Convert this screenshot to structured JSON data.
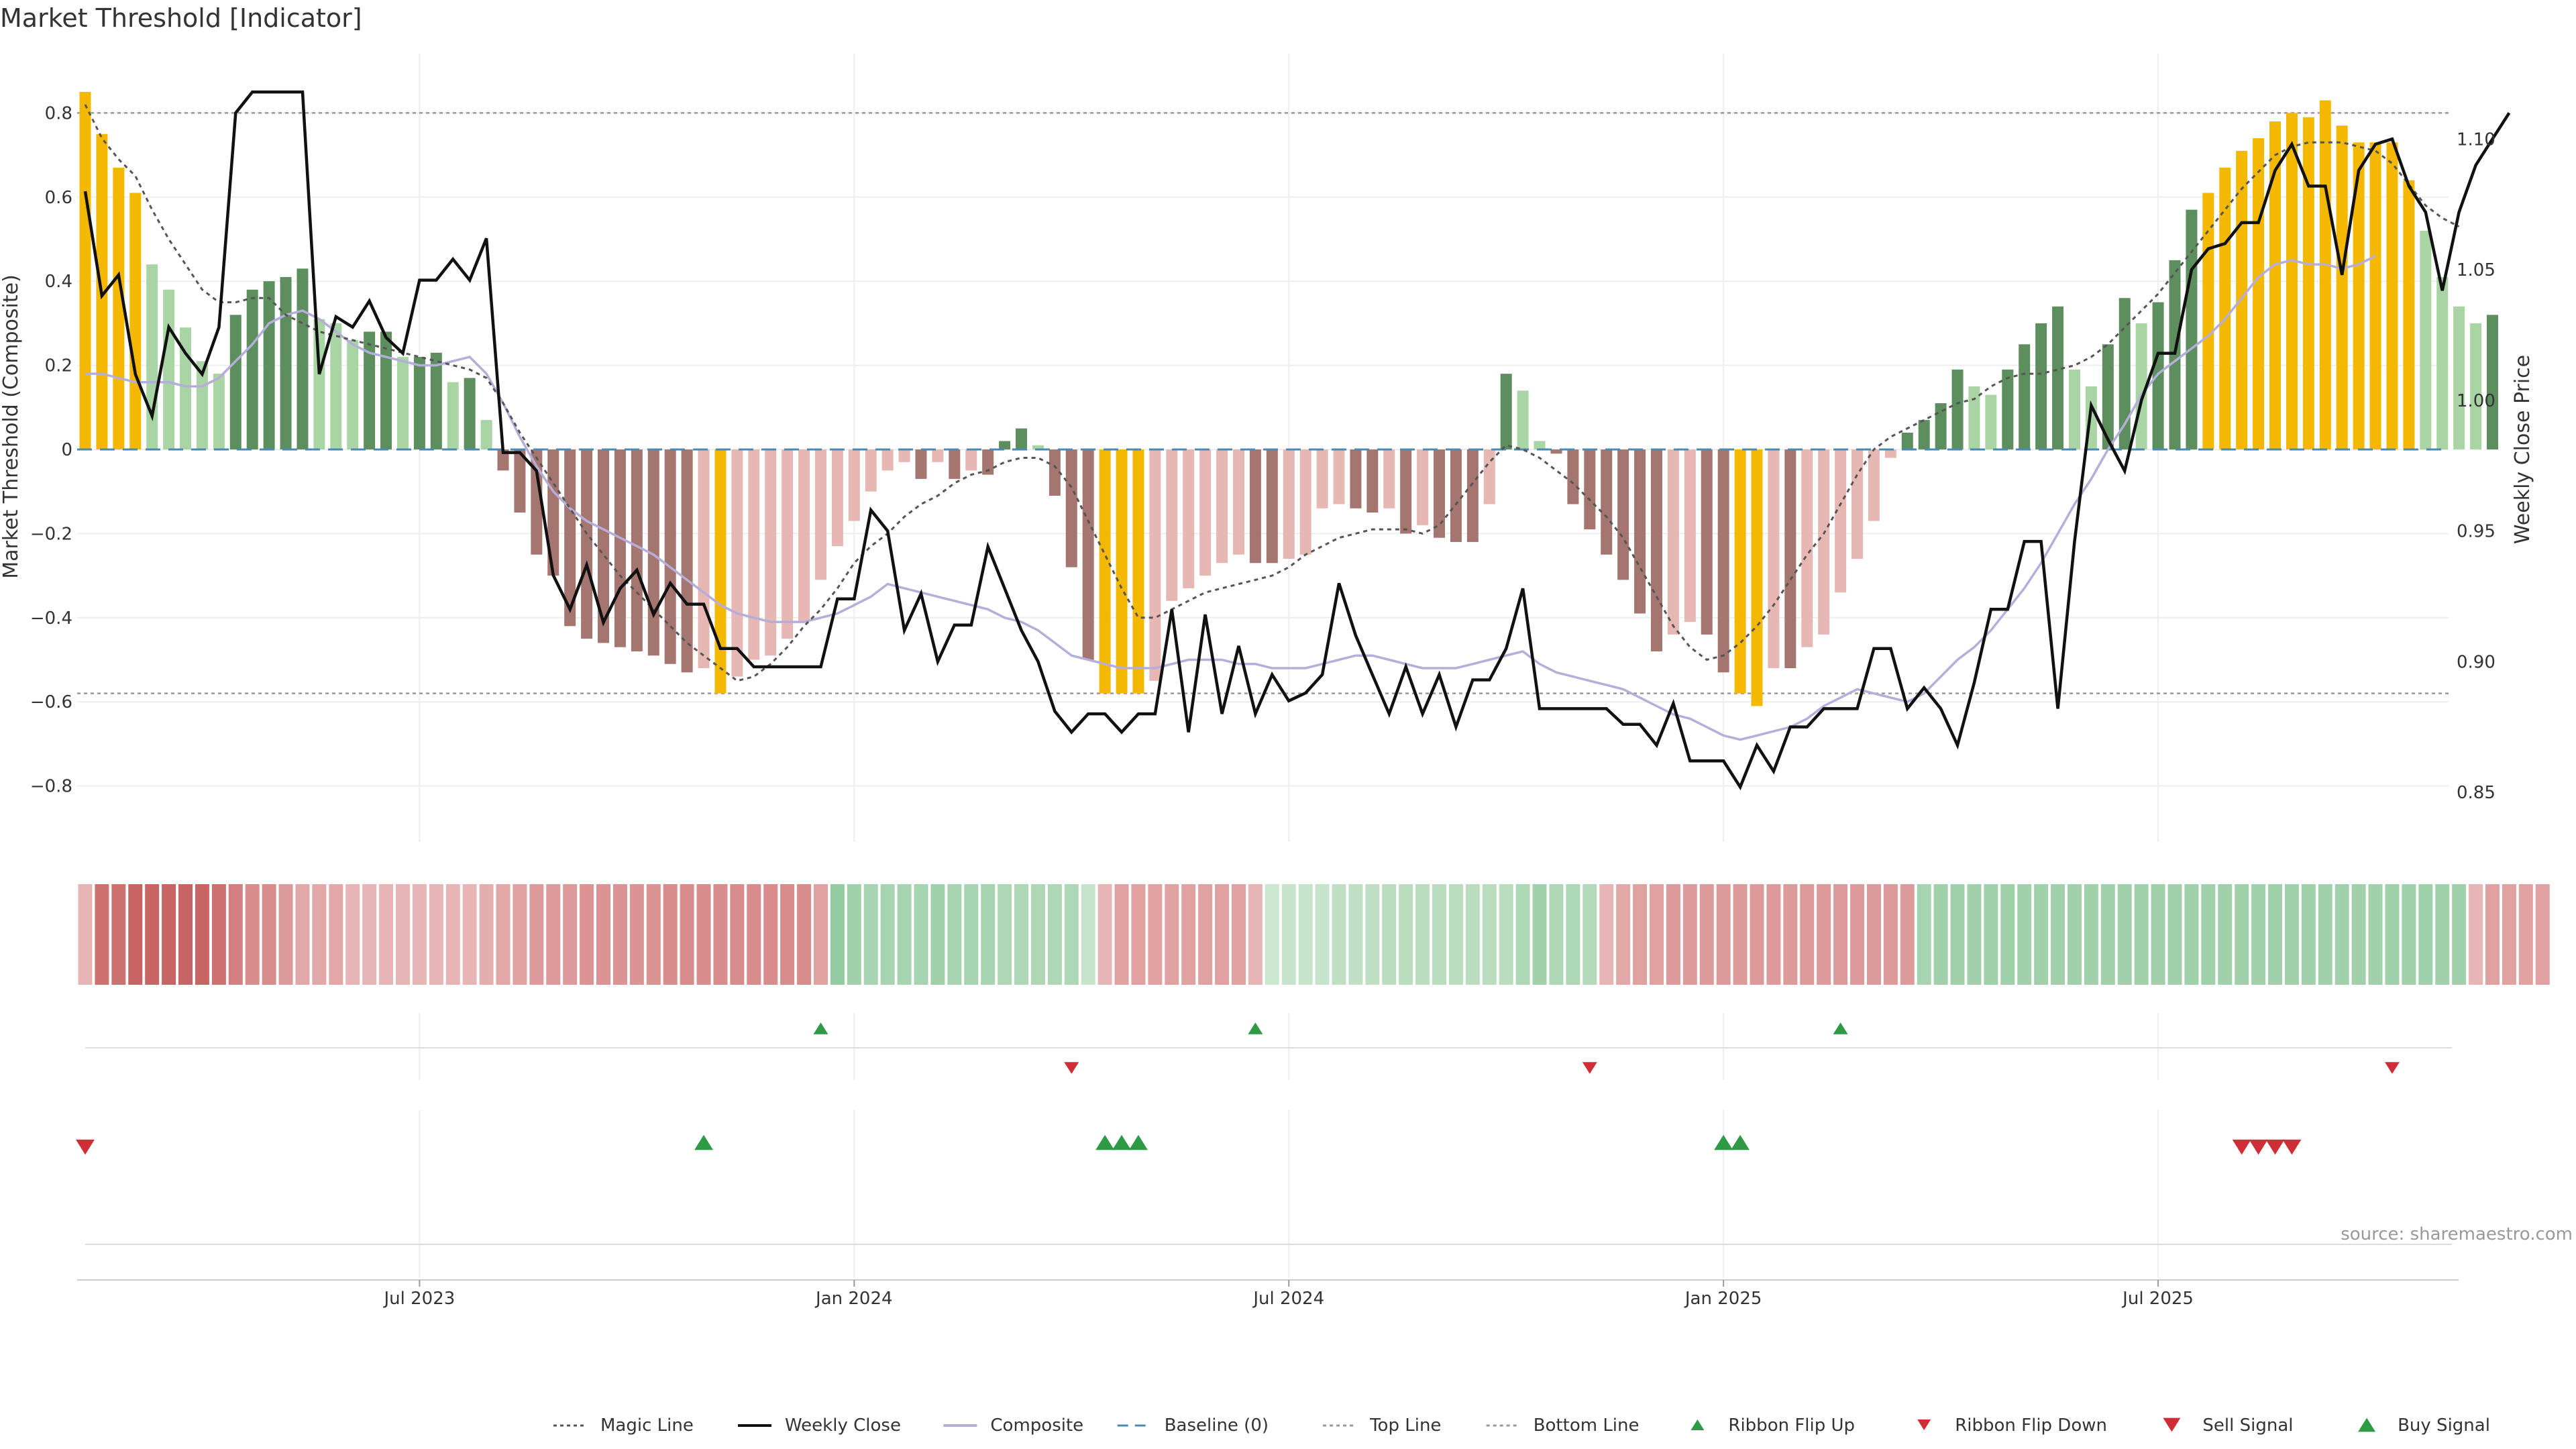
{
  "chart_data": {
    "type": "bar",
    "title": "Market Threshold [Indicator]",
    "ylabel_left": "Market Threshold (Composite)",
    "ylabel_right": "Weekly Close Price",
    "source": "source: sharemaestro.com",
    "ylim_left": [
      -0.95,
      0.87
    ],
    "ylim_right": [
      0.83,
      1.135
    ],
    "left_ticks": [
      "0.8",
      "0.6",
      "0.4",
      "0.2",
      "0",
      "−0.2",
      "−0.4",
      "−0.6",
      "−0.8"
    ],
    "left_tick_values": [
      0.8,
      0.6,
      0.4,
      0.2,
      0,
      -0.2,
      -0.4,
      -0.6,
      -0.8
    ],
    "right_ticks": [
      "1.10",
      "1.05",
      "1.00",
      "0.95",
      "0.90",
      "0.85"
    ],
    "right_tick_values": [
      1.1,
      1.05,
      1.0,
      0.95,
      0.9,
      0.85
    ],
    "x_ticks": [
      {
        "label": "Jul 2023",
        "week": 20
      },
      {
        "label": "Jan 2024",
        "week": 46
      },
      {
        "label": "Jul 2024",
        "week": 72
      },
      {
        "label": "Jan 2025",
        "week": 98
      },
      {
        "label": "Jul 2025",
        "week": 124
      }
    ],
    "top_line": 0.8,
    "bottom_line": -0.58,
    "baseline": 0,
    "composite_bars": [
      0.85,
      0.75,
      0.67,
      0.61,
      0.44,
      0.38,
      0.29,
      0.21,
      0.18,
      0.32,
      0.38,
      0.4,
      0.41,
      0.43,
      0.31,
      0.3,
      0.26,
      0.28,
      0.28,
      0.22,
      0.22,
      0.23,
      0.16,
      0.17,
      0.07,
      -0.05,
      -0.15,
      -0.25,
      -0.3,
      -0.42,
      -0.45,
      -0.46,
      -0.47,
      -0.48,
      -0.49,
      -0.51,
      -0.53,
      -0.52,
      -0.58,
      -0.54,
      -0.5,
      -0.49,
      -0.45,
      -0.41,
      -0.31,
      -0.23,
      -0.17,
      -0.1,
      -0.05,
      -0.03,
      -0.07,
      -0.03,
      -0.07,
      -0.05,
      -0.06,
      0.02,
      0.05,
      0.01,
      -0.11,
      -0.28,
      -0.5,
      -0.58,
      -0.58,
      -0.58,
      -0.55,
      -0.36,
      -0.33,
      -0.3,
      -0.27,
      -0.25,
      -0.27,
      -0.27,
      -0.26,
      -0.25,
      -0.14,
      -0.13,
      -0.14,
      -0.15,
      -0.14,
      -0.2,
      -0.18,
      -0.21,
      -0.22,
      -0.22,
      -0.13,
      0.18,
      0.14,
      0.02,
      -0.01,
      -0.13,
      -0.19,
      -0.25,
      -0.31,
      -0.39,
      -0.48,
      -0.44,
      -0.41,
      -0.44,
      -0.53,
      -0.58,
      -0.61,
      -0.52,
      -0.52,
      -0.47,
      -0.44,
      -0.34,
      -0.26,
      -0.17,
      -0.02,
      0.04,
      0.07,
      0.11,
      0.19,
      0.15,
      0.13,
      0.19,
      0.25,
      0.3,
      0.34,
      0.19,
      0.15,
      0.25,
      0.36,
      0.3,
      0.35,
      0.45,
      0.57,
      0.61,
      0.67,
      0.71,
      0.74,
      0.78,
      0.8,
      0.79,
      0.83,
      0.77,
      0.73,
      0.73,
      0.73,
      0.64,
      0.52,
      0.41,
      0.34,
      0.3,
      0.32
    ],
    "bar_colors": {
      "strong_pos": "#5d8f5e",
      "weak_pos": "#a9d5a5",
      "strong_neg": "#a57570",
      "weak_neg": "#e7b8b3",
      "extreme": "#f5b800"
    },
    "magic_line": [
      0.82,
      0.74,
      0.69,
      0.65,
      0.57,
      0.5,
      0.44,
      0.38,
      0.35,
      0.35,
      0.36,
      0.36,
      0.32,
      0.3,
      0.28,
      0.27,
      0.26,
      0.25,
      0.24,
      0.23,
      0.22,
      0.21,
      0.2,
      0.19,
      0.17,
      0.11,
      0.04,
      -0.02,
      -0.08,
      -0.14,
      -0.2,
      -0.25,
      -0.3,
      -0.34,
      -0.38,
      -0.42,
      -0.46,
      -0.49,
      -0.52,
      -0.55,
      -0.54,
      -0.51,
      -0.47,
      -0.42,
      -0.38,
      -0.33,
      -0.27,
      -0.23,
      -0.2,
      -0.16,
      -0.13,
      -0.11,
      -0.08,
      -0.06,
      -0.05,
      -0.03,
      -0.02,
      -0.02,
      -0.04,
      -0.09,
      -0.17,
      -0.25,
      -0.33,
      -0.4,
      -0.4,
      -0.38,
      -0.36,
      -0.34,
      -0.33,
      -0.32,
      -0.31,
      -0.3,
      -0.28,
      -0.25,
      -0.23,
      -0.21,
      -0.2,
      -0.19,
      -0.19,
      -0.19,
      -0.2,
      -0.18,
      -0.13,
      -0.08,
      -0.03,
      0.01,
      0.0,
      -0.02,
      -0.05,
      -0.08,
      -0.12,
      -0.16,
      -0.21,
      -0.28,
      -0.35,
      -0.42,
      -0.47,
      -0.5,
      -0.49,
      -0.46,
      -0.42,
      -0.37,
      -0.31,
      -0.25,
      -0.2,
      -0.13,
      -0.06,
      0.0,
      0.03,
      0.05,
      0.07,
      0.09,
      0.11,
      0.12,
      0.15,
      0.17,
      0.18,
      0.18,
      0.19,
      0.2,
      0.22,
      0.25,
      0.29,
      0.33,
      0.37,
      0.42,
      0.47,
      0.52,
      0.57,
      0.62,
      0.66,
      0.7,
      0.72,
      0.73,
      0.73,
      0.73,
      0.72,
      0.71,
      0.68,
      0.63,
      0.58,
      0.55,
      0.53
    ],
    "composite_line": [
      0.18,
      0.18,
      0.17,
      0.16,
      0.16,
      0.16,
      0.15,
      0.15,
      0.17,
      0.21,
      0.25,
      0.3,
      0.32,
      0.33,
      0.31,
      0.28,
      0.25,
      0.23,
      0.22,
      0.21,
      0.2,
      0.2,
      0.21,
      0.22,
      0.18,
      0.11,
      0.03,
      -0.04,
      -0.1,
      -0.14,
      -0.17,
      -0.19,
      -0.21,
      -0.23,
      -0.25,
      -0.28,
      -0.31,
      -0.34,
      -0.37,
      -0.39,
      -0.4,
      -0.41,
      -0.41,
      -0.41,
      -0.4,
      -0.39,
      -0.37,
      -0.35,
      -0.32,
      -0.33,
      -0.34,
      -0.35,
      -0.36,
      -0.37,
      -0.38,
      -0.4,
      -0.41,
      -0.43,
      -0.46,
      -0.49,
      -0.5,
      -0.51,
      -0.52,
      -0.52,
      -0.52,
      -0.51,
      -0.5,
      -0.5,
      -0.5,
      -0.51,
      -0.51,
      -0.52,
      -0.52,
      -0.52,
      -0.51,
      -0.5,
      -0.49,
      -0.49,
      -0.5,
      -0.51,
      -0.52,
      -0.52,
      -0.52,
      -0.51,
      -0.5,
      -0.49,
      -0.48,
      -0.51,
      -0.53,
      -0.54,
      -0.55,
      -0.56,
      -0.57,
      -0.59,
      -0.61,
      -0.63,
      -0.64,
      -0.66,
      -0.68,
      -0.69,
      -0.68,
      -0.67,
      -0.66,
      -0.64,
      -0.61,
      -0.59,
      -0.57,
      -0.58,
      -0.59,
      -0.6,
      -0.58,
      -0.54,
      -0.5,
      -0.47,
      -0.43,
      -0.38,
      -0.33,
      -0.27,
      -0.2,
      -0.13,
      -0.07,
      0.0,
      0.06,
      0.13,
      0.18,
      0.21,
      0.24,
      0.27,
      0.31,
      0.36,
      0.41,
      0.44,
      0.45,
      0.44,
      0.44,
      0.43,
      0.44,
      0.46
    ],
    "weekly_close": [
      1.08,
      1.04,
      1.048,
      1.01,
      0.994,
      1.028,
      1.018,
      1.01,
      1.028,
      1.11,
      1.118,
      1.118,
      1.118,
      1.118,
      1.01,
      1.032,
      1.028,
      1.038,
      1.024,
      1.018,
      1.046,
      1.046,
      1.054,
      1.046,
      1.062,
      0.98,
      0.98,
      0.973,
      0.933,
      0.92,
      0.937,
      0.915,
      0.928,
      0.935,
      0.918,
      0.93,
      0.922,
      0.922,
      0.905,
      0.905,
      0.898,
      0.898,
      0.898,
      0.898,
      0.898,
      0.924,
      0.924,
      0.958,
      0.95,
      0.912,
      0.926,
      0.9,
      0.914,
      0.914,
      0.944,
      0.928,
      0.912,
      0.9,
      0.881,
      0.873,
      0.88,
      0.88,
      0.873,
      0.88,
      0.88,
      0.92,
      0.873,
      0.918,
      0.88,
      0.906,
      0.88,
      0.895,
      0.885,
      0.888,
      0.895,
      0.93,
      0.91,
      0.895,
      0.88,
      0.898,
      0.88,
      0.895,
      0.875,
      0.893,
      0.893,
      0.905,
      0.928,
      0.882,
      0.882,
      0.882,
      0.882,
      0.882,
      0.876,
      0.876,
      0.868,
      0.884,
      0.862,
      0.862,
      0.862,
      0.852,
      0.868,
      0.858,
      0.875,
      0.875,
      0.882,
      0.882,
      0.882,
      0.905,
      0.905,
      0.882,
      0.89,
      0.882,
      0.868,
      0.892,
      0.92,
      0.92,
      0.946,
      0.946,
      0.882,
      0.946,
      0.998,
      0.985,
      0.973,
      1.0,
      1.018,
      1.018,
      1.05,
      1.058,
      1.06,
      1.068,
      1.068,
      1.088,
      1.098,
      1.082,
      1.082,
      1.048,
      1.088,
      1.098,
      1.1,
      1.082,
      1.072,
      1.042,
      1.072,
      1.09,
      1.1,
      1.11
    ],
    "ribbon": [
      -0.3,
      -0.8,
      -0.8,
      -0.9,
      -0.9,
      -0.9,
      -0.9,
      -0.9,
      -0.8,
      -0.7,
      -0.6,
      -0.6,
      -0.5,
      -0.4,
      -0.4,
      -0.4,
      -0.3,
      -0.3,
      -0.3,
      -0.3,
      -0.3,
      -0.3,
      -0.3,
      -0.3,
      -0.35,
      -0.4,
      -0.45,
      -0.5,
      -0.5,
      -0.5,
      -0.55,
      -0.55,
      -0.55,
      -0.55,
      -0.55,
      -0.6,
      -0.6,
      -0.6,
      -0.6,
      -0.6,
      -0.6,
      -0.6,
      -0.6,
      -0.6,
      -0.45,
      0.7,
      0.6,
      0.55,
      0.55,
      0.55,
      0.55,
      0.6,
      0.55,
      0.55,
      0.55,
      0.5,
      0.5,
      0.5,
      0.5,
      0.5,
      0.3,
      -0.3,
      -0.45,
      -0.45,
      -0.45,
      -0.45,
      -0.45,
      -0.45,
      -0.45,
      -0.45,
      -0.3,
      0.25,
      0.3,
      0.3,
      0.3,
      0.35,
      0.35,
      0.35,
      0.4,
      0.4,
      0.4,
      0.4,
      0.4,
      0.4,
      0.4,
      0.4,
      0.5,
      0.6,
      0.5,
      0.5,
      0.45,
      -0.3,
      -0.4,
      -0.45,
      -0.45,
      -0.5,
      -0.5,
      -0.5,
      -0.5,
      -0.5,
      -0.5,
      -0.5,
      -0.5,
      -0.5,
      -0.5,
      -0.5,
      -0.5,
      -0.5,
      -0.5,
      -0.5,
      0.55,
      0.6,
      0.6,
      0.6,
      0.6,
      0.6,
      0.6,
      0.6,
      0.6,
      0.6,
      0.6,
      0.6,
      0.6,
      0.6,
      0.6,
      0.6,
      0.6,
      0.6,
      0.6,
      0.6,
      0.6,
      0.6,
      0.6,
      0.6,
      0.6,
      0.6,
      0.6,
      0.6,
      0.6,
      0.6,
      0.6,
      0.6,
      0.6,
      -0.3,
      -0.45,
      -0.45,
      -0.45,
      -0.45
    ],
    "ribbon_flip_up_weeks": [
      44,
      70,
      105
    ],
    "ribbon_flip_down_weeks": [
      59,
      90,
      138
    ],
    "sell_signal_weeks": [
      0,
      129,
      130,
      131,
      132
    ],
    "buy_signal_weeks": [
      37,
      61,
      62,
      63,
      98,
      99
    ],
    "legend": [
      {
        "label": "Magic Line",
        "kind": "dotted",
        "color": "#555555"
      },
      {
        "label": "Weekly Close",
        "kind": "solid",
        "color": "#111111"
      },
      {
        "label": "Composite",
        "kind": "solid",
        "color": "#b5aedb"
      },
      {
        "label": "Baseline (0)",
        "kind": "dashed",
        "color": "#4c8ab0"
      },
      {
        "label": "Top Line",
        "kind": "dotted",
        "color": "#999999"
      },
      {
        "label": "Bottom Line",
        "kind": "dotted",
        "color": "#999999"
      },
      {
        "label": "Ribbon Flip Up",
        "kind": "tri-up-small",
        "color": "#2e9a46"
      },
      {
        "label": "Ribbon Flip Down",
        "kind": "tri-down-small",
        "color": "#cf2e36"
      },
      {
        "label": "Sell Signal",
        "kind": "tri-down",
        "color": "#cf2e36"
      },
      {
        "label": "Buy Signal",
        "kind": "tri-up",
        "color": "#2e9a46"
      }
    ]
  }
}
